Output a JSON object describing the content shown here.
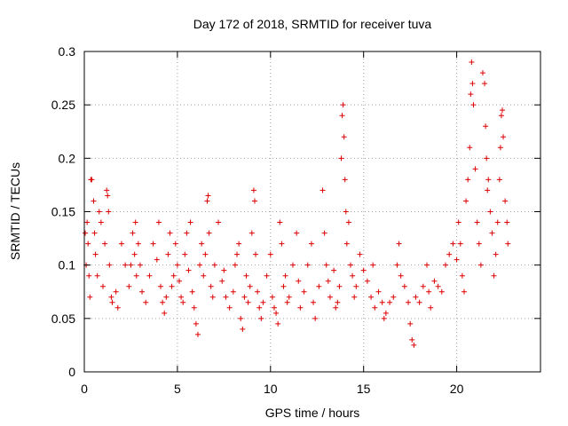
{
  "chart_data": {
    "type": "scatter",
    "title": "Day 172 of 2018, SRMTID for receiver tuva",
    "xlabel": "GPS time / hours",
    "ylabel": "SRMTID / TECUs",
    "xlim": [
      0,
      24.5
    ],
    "ylim": [
      0,
      0.3
    ],
    "x_ticks": [
      0,
      5,
      10,
      15,
      20
    ],
    "x_tick_labels": [
      "0",
      "5",
      "10",
      "15",
      "20"
    ],
    "y_ticks": [
      0,
      0.05,
      0.1,
      0.15,
      0.2,
      0.25,
      0.3
    ],
    "y_tick_labels": [
      "0",
      "0.05",
      "0.1",
      "0.15",
      "0.2",
      "0.25",
      "0.3"
    ],
    "grid": true,
    "legend": "none",
    "marker": "plus",
    "color": "#dd0000",
    "series": [
      {
        "points": [
          [
            0.05,
            0.13
          ],
          [
            0.1,
            0.1
          ],
          [
            0.15,
            0.14
          ],
          [
            0.2,
            0.12
          ],
          [
            0.25,
            0.09
          ],
          [
            0.3,
            0.07
          ],
          [
            0.35,
            0.18
          ],
          [
            0.4,
            0.18
          ],
          [
            0.5,
            0.16
          ],
          [
            0.55,
            0.13
          ],
          [
            0.6,
            0.11
          ],
          [
            0.7,
            0.09
          ],
          [
            0.8,
            0.15
          ],
          [
            0.9,
            0.14
          ],
          [
            1.0,
            0.08
          ],
          [
            1.1,
            0.12
          ],
          [
            1.2,
            0.17
          ],
          [
            1.25,
            0.165
          ],
          [
            1.3,
            0.15
          ],
          [
            1.35,
            0.1
          ],
          [
            1.45,
            0.07
          ],
          [
            1.5,
            0.065
          ],
          [
            1.7,
            0.075
          ],
          [
            1.8,
            0.06
          ],
          [
            2.0,
            0.12
          ],
          [
            2.2,
            0.1
          ],
          [
            2.4,
            0.08
          ],
          [
            2.5,
            0.1
          ],
          [
            2.6,
            0.13
          ],
          [
            2.7,
            0.11
          ],
          [
            2.75,
            0.14
          ],
          [
            2.8,
            0.09
          ],
          [
            2.9,
            0.12
          ],
          [
            3.0,
            0.1
          ],
          [
            3.1,
            0.075
          ],
          [
            3.3,
            0.065
          ],
          [
            3.5,
            0.09
          ],
          [
            3.7,
            0.12
          ],
          [
            3.9,
            0.105
          ],
          [
            4.0,
            0.14
          ],
          [
            4.1,
            0.08
          ],
          [
            4.2,
            0.065
          ],
          [
            4.3,
            0.055
          ],
          [
            4.4,
            0.07
          ],
          [
            4.5,
            0.11
          ],
          [
            4.6,
            0.13
          ],
          [
            4.7,
            0.08
          ],
          [
            4.8,
            0.09
          ],
          [
            4.9,
            0.12
          ],
          [
            5.0,
            0.1
          ],
          [
            5.1,
            0.085
          ],
          [
            5.2,
            0.07
          ],
          [
            5.3,
            0.065
          ],
          [
            5.4,
            0.11
          ],
          [
            5.5,
            0.13
          ],
          [
            5.6,
            0.095
          ],
          [
            5.7,
            0.14
          ],
          [
            5.8,
            0.075
          ],
          [
            5.9,
            0.06
          ],
          [
            6.0,
            0.045
          ],
          [
            6.1,
            0.035
          ],
          [
            6.2,
            0.1
          ],
          [
            6.3,
            0.12
          ],
          [
            6.4,
            0.09
          ],
          [
            6.5,
            0.11
          ],
          [
            6.6,
            0.16
          ],
          [
            6.65,
            0.165
          ],
          [
            6.7,
            0.13
          ],
          [
            6.8,
            0.08
          ],
          [
            6.9,
            0.07
          ],
          [
            7.0,
            0.1
          ],
          [
            7.2,
            0.14
          ],
          [
            7.4,
            0.085
          ],
          [
            7.5,
            0.095
          ],
          [
            7.6,
            0.07
          ],
          [
            7.8,
            0.06
          ],
          [
            8.0,
            0.075
          ],
          [
            8.1,
            0.1
          ],
          [
            8.2,
            0.11
          ],
          [
            8.3,
            0.12
          ],
          [
            8.4,
            0.05
          ],
          [
            8.5,
            0.04
          ],
          [
            8.6,
            0.07
          ],
          [
            8.7,
            0.09
          ],
          [
            8.8,
            0.065
          ],
          [
            8.9,
            0.08
          ],
          [
            9.0,
            0.13
          ],
          [
            9.1,
            0.17
          ],
          [
            9.15,
            0.16
          ],
          [
            9.2,
            0.11
          ],
          [
            9.3,
            0.075
          ],
          [
            9.4,
            0.06
          ],
          [
            9.5,
            0.05
          ],
          [
            9.6,
            0.065
          ],
          [
            9.8,
            0.09
          ],
          [
            10.0,
            0.11
          ],
          [
            10.1,
            0.07
          ],
          [
            10.2,
            0.06
          ],
          [
            10.3,
            0.055
          ],
          [
            10.4,
            0.045
          ],
          [
            10.5,
            0.14
          ],
          [
            10.6,
            0.12
          ],
          [
            10.7,
            0.08
          ],
          [
            10.8,
            0.09
          ],
          [
            10.9,
            0.065
          ],
          [
            11.0,
            0.07
          ],
          [
            11.2,
            0.1
          ],
          [
            11.4,
            0.13
          ],
          [
            11.5,
            0.085
          ],
          [
            11.6,
            0.06
          ],
          [
            11.8,
            0.075
          ],
          [
            12.0,
            0.1
          ],
          [
            12.2,
            0.12
          ],
          [
            12.3,
            0.065
          ],
          [
            12.4,
            0.05
          ],
          [
            12.6,
            0.08
          ],
          [
            12.8,
            0.17
          ],
          [
            12.9,
            0.13
          ],
          [
            13.0,
            0.1
          ],
          [
            13.1,
            0.085
          ],
          [
            13.2,
            0.07
          ],
          [
            13.4,
            0.095
          ],
          [
            13.5,
            0.06
          ],
          [
            13.6,
            0.065
          ],
          [
            13.7,
            0.08
          ],
          [
            13.8,
            0.2
          ],
          [
            13.85,
            0.24
          ],
          [
            13.9,
            0.25
          ],
          [
            13.95,
            0.22
          ],
          [
            14.0,
            0.18
          ],
          [
            14.05,
            0.15
          ],
          [
            14.1,
            0.12
          ],
          [
            14.2,
            0.14
          ],
          [
            14.3,
            0.1
          ],
          [
            14.4,
            0.09
          ],
          [
            14.5,
            0.07
          ],
          [
            14.6,
            0.08
          ],
          [
            14.8,
            0.11
          ],
          [
            15.0,
            0.095
          ],
          [
            15.2,
            0.085
          ],
          [
            15.4,
            0.07
          ],
          [
            15.5,
            0.1
          ],
          [
            15.6,
            0.06
          ],
          [
            15.8,
            0.075
          ],
          [
            16.0,
            0.065
          ],
          [
            16.1,
            0.05
          ],
          [
            16.2,
            0.055
          ],
          [
            16.4,
            0.065
          ],
          [
            16.6,
            0.07
          ],
          [
            16.8,
            0.1
          ],
          [
            16.9,
            0.12
          ],
          [
            17.0,
            0.09
          ],
          [
            17.2,
            0.08
          ],
          [
            17.4,
            0.065
          ],
          [
            17.5,
            0.045
          ],
          [
            17.6,
            0.03
          ],
          [
            17.7,
            0.025
          ],
          [
            17.8,
            0.07
          ],
          [
            18.0,
            0.065
          ],
          [
            18.2,
            0.08
          ],
          [
            18.4,
            0.1
          ],
          [
            18.5,
            0.075
          ],
          [
            18.6,
            0.06
          ],
          [
            18.8,
            0.085
          ],
          [
            19.0,
            0.08
          ],
          [
            19.2,
            0.075
          ],
          [
            19.4,
            0.1
          ],
          [
            19.6,
            0.11
          ],
          [
            19.8,
            0.12
          ],
          [
            20.0,
            0.105
          ],
          [
            20.1,
            0.14
          ],
          [
            20.2,
            0.12
          ],
          [
            20.3,
            0.09
          ],
          [
            20.4,
            0.075
          ],
          [
            20.5,
            0.16
          ],
          [
            20.6,
            0.18
          ],
          [
            20.7,
            0.21
          ],
          [
            20.75,
            0.26
          ],
          [
            20.8,
            0.29
          ],
          [
            20.85,
            0.27
          ],
          [
            20.9,
            0.25
          ],
          [
            21.0,
            0.19
          ],
          [
            21.1,
            0.14
          ],
          [
            21.2,
            0.12
          ],
          [
            21.3,
            0.1
          ],
          [
            21.4,
            0.28
          ],
          [
            21.5,
            0.27
          ],
          [
            21.55,
            0.23
          ],
          [
            21.6,
            0.2
          ],
          [
            21.65,
            0.17
          ],
          [
            21.7,
            0.18
          ],
          [
            21.8,
            0.15
          ],
          [
            21.9,
            0.13
          ],
          [
            22.0,
            0.09
          ],
          [
            22.1,
            0.11
          ],
          [
            22.2,
            0.14
          ],
          [
            22.3,
            0.18
          ],
          [
            22.35,
            0.21
          ],
          [
            22.4,
            0.24
          ],
          [
            22.45,
            0.245
          ],
          [
            22.5,
            0.22
          ],
          [
            22.6,
            0.16
          ],
          [
            22.7,
            0.14
          ],
          [
            22.75,
            0.12
          ]
        ]
      }
    ]
  }
}
